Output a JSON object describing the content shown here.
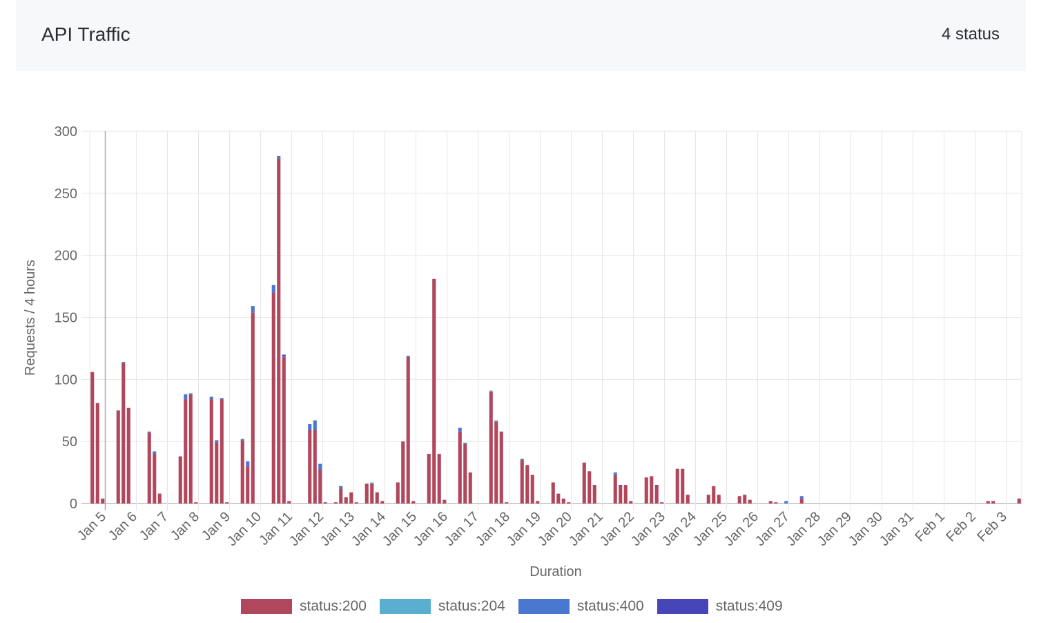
{
  "header": {
    "title": "API Traffic",
    "status_count": "4 status"
  },
  "chart_data": {
    "type": "bar",
    "stacked": true,
    "title": "API Traffic",
    "xlabel": "Duration",
    "ylabel": "Requests / 4 hours",
    "ylim": [
      0,
      300
    ],
    "yticks": [
      0,
      50,
      100,
      150,
      200,
      250,
      300
    ],
    "grid": true,
    "legend_position": "bottom",
    "interval_hours": 4,
    "start": "Jan 4 12:00",
    "slot_count": 180,
    "first_day_slot": 3,
    "day_labels": [
      "Jan 5",
      "Jan 6",
      "Jan 7",
      "Jan 8",
      "Jan 9",
      "Jan 10",
      "Jan 11",
      "Jan 12",
      "Jan 13",
      "Jan 14",
      "Jan 15",
      "Jan 16",
      "Jan 17",
      "Jan 18",
      "Jan 19",
      "Jan 20",
      "Jan 21",
      "Jan 22",
      "Jan 23",
      "Jan 24",
      "Jan 25",
      "Jan 26",
      "Jan 27",
      "Jan 28",
      "Jan 29",
      "Jan 30",
      "Jan 31",
      "Feb 1",
      "Feb 2",
      "Feb 3"
    ],
    "series": [
      {
        "name": "status:200",
        "color": "#b0475c"
      },
      {
        "name": "status:204",
        "color": "#5aafd0"
      },
      {
        "name": "status:400",
        "color": "#4a78d0"
      },
      {
        "name": "status:409",
        "color": "#4646b8"
      }
    ],
    "bars_columns": [
      "slot",
      "status:200",
      "status:204",
      "status:400",
      "status:409"
    ],
    "bars": [
      [
        0,
        106,
        0,
        0,
        0
      ],
      [
        1,
        81,
        0,
        0,
        0
      ],
      [
        2,
        4,
        0,
        0,
        0
      ],
      [
        5,
        75,
        0,
        0,
        0
      ],
      [
        6,
        113,
        0,
        1,
        0
      ],
      [
        7,
        77,
        0,
        0,
        0
      ],
      [
        11,
        57,
        0,
        1,
        0
      ],
      [
        12,
        40,
        0,
        2,
        0
      ],
      [
        13,
        8,
        0,
        0,
        0
      ],
      [
        17,
        38,
        0,
        0,
        0
      ],
      [
        18,
        84,
        0,
        4,
        0
      ],
      [
        19,
        88,
        1,
        0,
        0
      ],
      [
        20,
        1,
        0,
        0,
        0
      ],
      [
        23,
        84,
        0,
        2,
        0
      ],
      [
        24,
        49,
        0,
        2,
        0
      ],
      [
        25,
        84,
        0,
        1,
        0
      ],
      [
        26,
        1,
        0,
        0,
        0
      ],
      [
        29,
        51,
        0,
        1,
        0
      ],
      [
        30,
        30,
        0,
        4,
        0
      ],
      [
        31,
        154,
        0,
        4,
        1
      ],
      [
        35,
        170,
        0,
        6,
        0
      ],
      [
        36,
        278,
        0,
        2,
        0
      ],
      [
        37,
        118,
        0,
        1,
        1
      ],
      [
        38,
        2,
        0,
        0,
        0
      ],
      [
        42,
        59,
        0,
        5,
        0
      ],
      [
        43,
        59,
        0,
        8,
        0
      ],
      [
        44,
        27,
        0,
        5,
        0
      ],
      [
        45,
        1,
        0,
        0,
        0
      ],
      [
        47,
        1,
        0,
        0,
        0
      ],
      [
        48,
        12,
        0,
        2,
        0
      ],
      [
        49,
        5,
        0,
        0,
        0
      ],
      [
        50,
        9,
        0,
        0,
        0
      ],
      [
        51,
        1,
        0,
        0,
        0
      ],
      [
        53,
        16,
        0,
        0,
        0
      ],
      [
        54,
        16,
        1,
        0,
        0
      ],
      [
        55,
        9,
        0,
        0,
        0
      ],
      [
        56,
        2,
        0,
        0,
        0
      ],
      [
        59,
        17,
        0,
        0,
        0
      ],
      [
        60,
        50,
        0,
        0,
        0
      ],
      [
        61,
        118,
        0,
        1,
        0
      ],
      [
        62,
        2,
        0,
        0,
        0
      ],
      [
        65,
        40,
        0,
        0,
        0
      ],
      [
        66,
        181,
        0,
        0,
        0
      ],
      [
        67,
        40,
        0,
        0,
        0
      ],
      [
        68,
        3,
        0,
        0,
        0
      ],
      [
        71,
        58,
        0,
        3,
        0
      ],
      [
        72,
        48,
        0,
        1,
        0
      ],
      [
        73,
        25,
        0,
        0,
        0
      ],
      [
        77,
        90,
        1,
        0,
        0
      ],
      [
        78,
        66,
        1,
        0,
        0
      ],
      [
        79,
        58,
        0,
        0,
        0
      ],
      [
        80,
        1,
        0,
        0,
        0
      ],
      [
        83,
        35,
        0,
        1,
        0
      ],
      [
        84,
        31,
        0,
        0,
        0
      ],
      [
        85,
        23,
        0,
        0,
        0
      ],
      [
        86,
        2,
        0,
        0,
        0
      ],
      [
        89,
        17,
        0,
        0,
        0
      ],
      [
        90,
        8,
        0,
        0,
        0
      ],
      [
        91,
        4,
        0,
        0,
        0
      ],
      [
        92,
        1,
        0,
        0,
        0
      ],
      [
        95,
        33,
        0,
        0,
        0
      ],
      [
        96,
        26,
        0,
        0,
        0
      ],
      [
        97,
        15,
        0,
        0,
        0
      ],
      [
        101,
        23,
        0,
        2,
        0
      ],
      [
        102,
        14,
        0,
        0,
        1
      ],
      [
        103,
        15,
        0,
        0,
        0
      ],
      [
        104,
        2,
        0,
        0,
        0
      ],
      [
        107,
        21,
        0,
        0,
        0
      ],
      [
        108,
        22,
        0,
        0,
        0
      ],
      [
        109,
        14,
        0,
        0,
        1
      ],
      [
        110,
        1,
        0,
        0,
        0
      ],
      [
        113,
        28,
        0,
        0,
        0
      ],
      [
        114,
        28,
        0,
        0,
        0
      ],
      [
        115,
        7,
        0,
        0,
        0
      ],
      [
        119,
        7,
        0,
        0,
        0
      ],
      [
        120,
        14,
        0,
        0,
        0
      ],
      [
        121,
        7,
        0,
        0,
        0
      ],
      [
        125,
        6,
        0,
        0,
        0
      ],
      [
        126,
        7,
        0,
        0,
        0
      ],
      [
        127,
        3,
        0,
        0,
        0
      ],
      [
        131,
        2,
        0,
        0,
        0
      ],
      [
        132,
        1,
        0,
        0,
        0
      ],
      [
        134,
        0,
        0,
        2,
        0
      ],
      [
        137,
        4,
        0,
        2,
        0
      ],
      [
        173,
        2,
        0,
        0,
        0
      ],
      [
        174,
        2,
        0,
        0,
        0
      ],
      [
        179,
        4,
        0,
        0,
        0
      ]
    ]
  }
}
